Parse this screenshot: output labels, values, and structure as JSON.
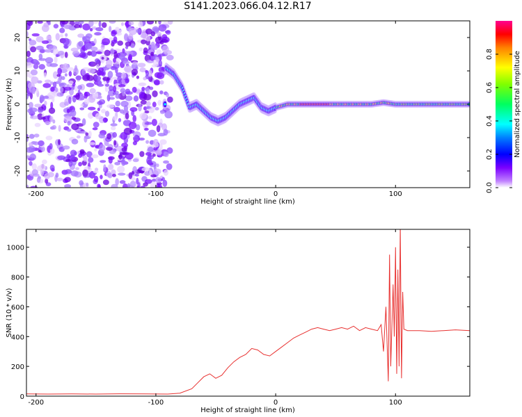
{
  "chart_data": [
    {
      "type": "heatmap",
      "title": "S141.2023.066.04.12.R17",
      "xlabel": "Height of straight line (km)",
      "ylabel": "Frequency (Hz)",
      "xlim": [
        -208,
        162
      ],
      "ylim": [
        -25,
        25
      ],
      "xticks": [
        -200,
        -100,
        0,
        100
      ],
      "yticks": [
        -20,
        -10,
        0,
        10,
        20
      ],
      "colorbar": {
        "label": "Normalized spectral amplitude",
        "ticks": [
          0.0,
          0.2,
          0.4,
          0.6,
          0.8
        ],
        "range": [
          0,
          1
        ],
        "colormap": [
          "#ffffff",
          "#7a00ff",
          "#0000ff",
          "#00ffff",
          "#00ff00",
          "#ffff00",
          "#ff0000",
          "#ff0090"
        ]
      },
      "ridge": {
        "description_points_x": [
          -92,
          -85,
          -78,
          -72,
          -66,
          -60,
          -54,
          -48,
          -42,
          -36,
          -30,
          -24,
          -18,
          -12,
          -6,
          0,
          10,
          20,
          40,
          60,
          80,
          90,
          100,
          130,
          162
        ],
        "description_points_y": [
          11,
          9,
          5,
          -1,
          0,
          -2,
          -4,
          -5,
          -4,
          -2,
          0,
          1,
          2,
          -1,
          -2,
          -1,
          0,
          0,
          0,
          0,
          0,
          0.5,
          0,
          0,
          0
        ]
      }
    },
    {
      "type": "line",
      "xlabel": "Height of straight line (km)",
      "ylabel": "SNR (10 * v/v)",
      "xlim": [
        -208,
        162
      ],
      "ylim": [
        0,
        1120
      ],
      "xticks": [
        -200,
        -100,
        0,
        100
      ],
      "yticks": [
        0,
        200,
        400,
        600,
        800,
        1000
      ],
      "color": "#e8302f",
      "series": [
        {
          "x": [
            -208,
            -190,
            -170,
            -150,
            -130,
            -110,
            -90,
            -80,
            -70,
            -65,
            -60,
            -55,
            -50,
            -45,
            -40,
            -35,
            -30,
            -25,
            -20,
            -15,
            -10,
            -5,
            0,
            5,
            10,
            15,
            20,
            25,
            30,
            35,
            40,
            45,
            50,
            55,
            60,
            65,
            70,
            75,
            80,
            85,
            88,
            90,
            92,
            94,
            95,
            96,
            98,
            99,
            100,
            101,
            102,
            103,
            104,
            105,
            106,
            107,
            110,
            120,
            130,
            140,
            150,
            162
          ],
          "y": [
            15,
            14,
            15,
            14,
            16,
            15,
            14,
            20,
            50,
            90,
            130,
            150,
            120,
            140,
            190,
            230,
            260,
            280,
            320,
            310,
            280,
            270,
            300,
            330,
            360,
            390,
            410,
            430,
            450,
            460,
            450,
            440,
            450,
            460,
            450,
            470,
            440,
            460,
            450,
            440,
            480,
            300,
            600,
            100,
            950,
            200,
            750,
            400,
            1000,
            150,
            850,
            200,
            1150,
            120,
            700,
            450,
            440,
            440,
            435,
            440,
            445,
            440
          ]
        }
      ]
    }
  ]
}
